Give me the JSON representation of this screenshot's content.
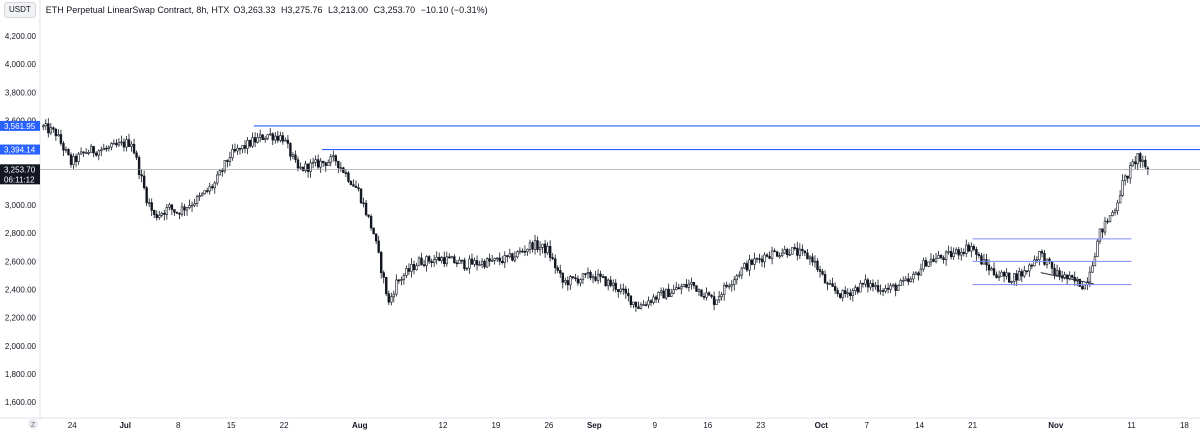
{
  "header": {
    "symbol_badge": "USDT",
    "title": "ETH Perpetual LinearSwap Contract, 8h, HTX",
    "open": "O3,263.33",
    "high": "H3,275.76",
    "low": "L3,213.00",
    "close": "C3,253.70",
    "change": "−10.10 (−0.31%)"
  },
  "colors": {
    "candle": "#131722",
    "level_line": "#2962ff",
    "box_line": "#7b8cff",
    "current_price_line": "#9598a1",
    "price_tag_bg": "#2962ff",
    "current_tag_bg": "#131722"
  },
  "price_tags": {
    "level1": "3,561.95",
    "level2": "3,394.14",
    "current": "3,253.70",
    "countdown": "06:11:12"
  },
  "bottom_left_icon": "tradingview-logo-icon",
  "chart_data": {
    "type": "candlestick",
    "title": "ETH Perpetual LinearSwap Contract, 8h, HTX",
    "xlabel": "",
    "ylabel": "",
    "ylim": [
      1530,
      4300
    ],
    "y_ticks": [
      1600,
      1800,
      2000,
      2200,
      2400,
      2600,
      2800,
      3000,
      3200,
      3400,
      3600,
      3800,
      4000,
      4200
    ],
    "y_tick_labels": [
      "1,600.00",
      "1,800.00",
      "2,000.00",
      "2,200.00",
      "2,400.00",
      "2,600.00",
      "2,800.00",
      "3,000.00",
      "3,200.00",
      "3,400.00",
      "3,600.00",
      "3,800.00",
      "4,000.00",
      "4,200.00"
    ],
    "x_range": [
      "2024-06-20",
      "2024-11-19"
    ],
    "x_ticks": [
      {
        "label": "24",
        "date": "2024-06-24",
        "month": false
      },
      {
        "label": "Jul",
        "date": "2024-07-01",
        "month": true
      },
      {
        "label": "8",
        "date": "2024-07-08",
        "month": false
      },
      {
        "label": "15",
        "date": "2024-07-15",
        "month": false
      },
      {
        "label": "22",
        "date": "2024-07-22",
        "month": false
      },
      {
        "label": "Aug",
        "date": "2024-08-01",
        "month": true
      },
      {
        "label": "12",
        "date": "2024-08-12",
        "month": false
      },
      {
        "label": "19",
        "date": "2024-08-19",
        "month": false
      },
      {
        "label": "26",
        "date": "2024-08-26",
        "month": false
      },
      {
        "label": "Sep",
        "date": "2024-09-01",
        "month": true
      },
      {
        "label": "9",
        "date": "2024-09-09",
        "month": false
      },
      {
        "label": "16",
        "date": "2024-09-16",
        "month": false
      },
      {
        "label": "23",
        "date": "2024-09-23",
        "month": false
      },
      {
        "label": "Oct",
        "date": "2024-10-01",
        "month": true
      },
      {
        "label": "7",
        "date": "2024-10-07",
        "month": false
      },
      {
        "label": "14",
        "date": "2024-10-14",
        "month": false
      },
      {
        "label": "21",
        "date": "2024-10-21",
        "month": false
      },
      {
        "label": "Nov",
        "date": "2024-11-01",
        "month": true
      },
      {
        "label": "11",
        "date": "2024-11-11",
        "month": false
      },
      {
        "label": "18",
        "date": "2024-11-18",
        "month": false
      }
    ],
    "price_path": [
      {
        "date": "2024-06-20",
        "price": 3560
      },
      {
        "date": "2024-06-22",
        "price": 3510
      },
      {
        "date": "2024-06-24",
        "price": 3300
      },
      {
        "date": "2024-06-26",
        "price": 3380
      },
      {
        "date": "2024-06-29",
        "price": 3400
      },
      {
        "date": "2024-07-02",
        "price": 3450
      },
      {
        "date": "2024-07-04",
        "price": 3050
      },
      {
        "date": "2024-07-05",
        "price": 2920
      },
      {
        "date": "2024-07-07",
        "price": 2980
      },
      {
        "date": "2024-07-08",
        "price": 2950
      },
      {
        "date": "2024-07-11",
        "price": 3050
      },
      {
        "date": "2024-07-13",
        "price": 3150
      },
      {
        "date": "2024-07-15",
        "price": 3350
      },
      {
        "date": "2024-07-18",
        "price": 3450
      },
      {
        "date": "2024-07-20",
        "price": 3500
      },
      {
        "date": "2024-07-22",
        "price": 3480
      },
      {
        "date": "2024-07-24",
        "price": 3250
      },
      {
        "date": "2024-07-27",
        "price": 3300
      },
      {
        "date": "2024-07-29",
        "price": 3320
      },
      {
        "date": "2024-08-01",
        "price": 3100
      },
      {
        "date": "2024-08-03",
        "price": 2800
      },
      {
        "date": "2024-08-05",
        "price": 2300
      },
      {
        "date": "2024-08-06",
        "price": 2450
      },
      {
        "date": "2024-08-09",
        "price": 2600
      },
      {
        "date": "2024-08-12",
        "price": 2620
      },
      {
        "date": "2024-08-15",
        "price": 2580
      },
      {
        "date": "2024-08-19",
        "price": 2600
      },
      {
        "date": "2024-08-21",
        "price": 2620
      },
      {
        "date": "2024-08-24",
        "price": 2720
      },
      {
        "date": "2024-08-26",
        "price": 2680
      },
      {
        "date": "2024-08-28",
        "price": 2450
      },
      {
        "date": "2024-09-01",
        "price": 2500
      },
      {
        "date": "2024-09-04",
        "price": 2420
      },
      {
        "date": "2024-09-07",
        "price": 2280
      },
      {
        "date": "2024-09-09",
        "price": 2340
      },
      {
        "date": "2024-09-12",
        "price": 2400
      },
      {
        "date": "2024-09-14",
        "price": 2440
      },
      {
        "date": "2024-09-17",
        "price": 2320
      },
      {
        "date": "2024-09-19",
        "price": 2450
      },
      {
        "date": "2024-09-21",
        "price": 2560
      },
      {
        "date": "2024-09-24",
        "price": 2650
      },
      {
        "date": "2024-09-27",
        "price": 2680
      },
      {
        "date": "2024-09-30",
        "price": 2620
      },
      {
        "date": "2024-10-02",
        "price": 2420
      },
      {
        "date": "2024-10-04",
        "price": 2360
      },
      {
        "date": "2024-10-07",
        "price": 2440
      },
      {
        "date": "2024-10-10",
        "price": 2400
      },
      {
        "date": "2024-10-13",
        "price": 2460
      },
      {
        "date": "2024-10-15",
        "price": 2600
      },
      {
        "date": "2024-10-18",
        "price": 2640
      },
      {
        "date": "2024-10-21",
        "price": 2710
      },
      {
        "date": "2024-10-22",
        "price": 2620
      },
      {
        "date": "2024-10-24",
        "price": 2520
      },
      {
        "date": "2024-10-26",
        "price": 2480
      },
      {
        "date": "2024-10-28",
        "price": 2520
      },
      {
        "date": "2024-10-30",
        "price": 2660
      },
      {
        "date": "2024-11-01",
        "price": 2520
      },
      {
        "date": "2024-11-03",
        "price": 2470
      },
      {
        "date": "2024-11-05",
        "price": 2430
      },
      {
        "date": "2024-11-06",
        "price": 2600
      },
      {
        "date": "2024-11-07",
        "price": 2800
      },
      {
        "date": "2024-11-09",
        "price": 2980
      },
      {
        "date": "2024-11-10",
        "price": 3150
      },
      {
        "date": "2024-11-11",
        "price": 3250
      },
      {
        "date": "2024-11-12",
        "price": 3350
      },
      {
        "date": "2024-11-13",
        "price": 3253.7
      }
    ],
    "last_candle": {
      "open": 3263.33,
      "high": 3275.76,
      "low": 3213.0,
      "close": 3253.7
    },
    "horizontal_levels": [
      {
        "price": 3561.95,
        "from": "2024-07-18"
      },
      {
        "price": 3394.14,
        "from": "2024-07-27"
      }
    ],
    "current_price": 3253.7,
    "range_box": {
      "from": "2024-10-21",
      "to": "2024-11-11",
      "lines": [
        2760,
        2600,
        2435
      ]
    },
    "trendline": {
      "from": {
        "date": "2024-10-30",
        "price": 2520
      },
      "to": {
        "date": "2024-11-06",
        "price": 2440
      }
    },
    "grid": false
  }
}
